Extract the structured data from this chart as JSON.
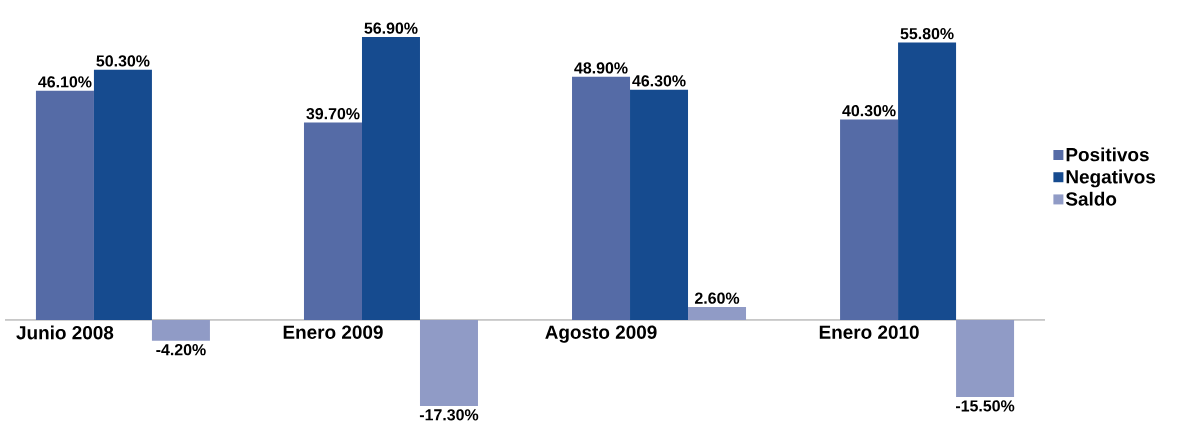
{
  "chart_data": {
    "type": "bar",
    "categories": [
      "Junio 2008",
      "Enero 2009",
      "Agosto 2009",
      "Enero 2010"
    ],
    "series": [
      {
        "name": "Positivos",
        "color": "#556ba6",
        "values": [
          46.1,
          39.7,
          48.9,
          40.3
        ],
        "value_labels": [
          "46.10%",
          "39.70%",
          "48.90%",
          "40.30%"
        ]
      },
      {
        "name": "Negativos",
        "color": "#164b8f",
        "values": [
          50.3,
          56.9,
          46.3,
          55.8
        ],
        "value_labels": [
          "50.30%",
          "56.90%",
          "46.30%",
          "55.80%"
        ]
      },
      {
        "name": "Saldo",
        "color": "#909bc6",
        "values": [
          -4.2,
          -17.3,
          2.6,
          -15.5
        ],
        "value_labels": [
          "-4.20%",
          "-17.30%",
          "2.60%",
          "-15.50%"
        ]
      }
    ],
    "legend": "right"
  }
}
